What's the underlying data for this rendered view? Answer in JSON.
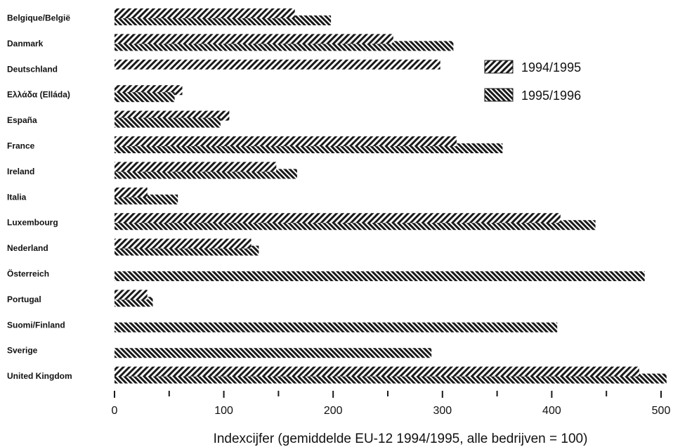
{
  "chart_data": {
    "type": "bar",
    "orientation": "horizontal",
    "categories": [
      "Belgique/België",
      "Danmark",
      "Deutschland",
      "Ελλάδα (Elláda)",
      "España",
      "France",
      "Ireland",
      "Italia",
      "Luxembourg",
      "Nederland",
      "Österreich",
      "Portugal",
      "Suomi/Finland",
      "Sverige",
      "United Kingdom"
    ],
    "series": [
      {
        "name": "1994/1995",
        "values": [
          165,
          255,
          298,
          62,
          105,
          313,
          148,
          30,
          408,
          125,
          null,
          30,
          null,
          null,
          480
        ]
      },
      {
        "name": "1995/1996",
        "values": [
          198,
          310,
          null,
          55,
          97,
          355,
          167,
          58,
          440,
          132,
          485,
          35,
          405,
          290,
          505
        ]
      }
    ],
    "xlabel": "Indexcijfer (gemiddelde EU-12 1994/1995, alle bedrijven = 100)",
    "ylabel": "",
    "title": "",
    "xlim": [
      0,
      500
    ],
    "xticks": [
      0,
      100,
      200,
      300,
      400,
      500
    ],
    "grid": false,
    "legend_position": "right",
    "colors": {
      "bar": "#1a1a1a",
      "background": "#ffffff"
    }
  }
}
